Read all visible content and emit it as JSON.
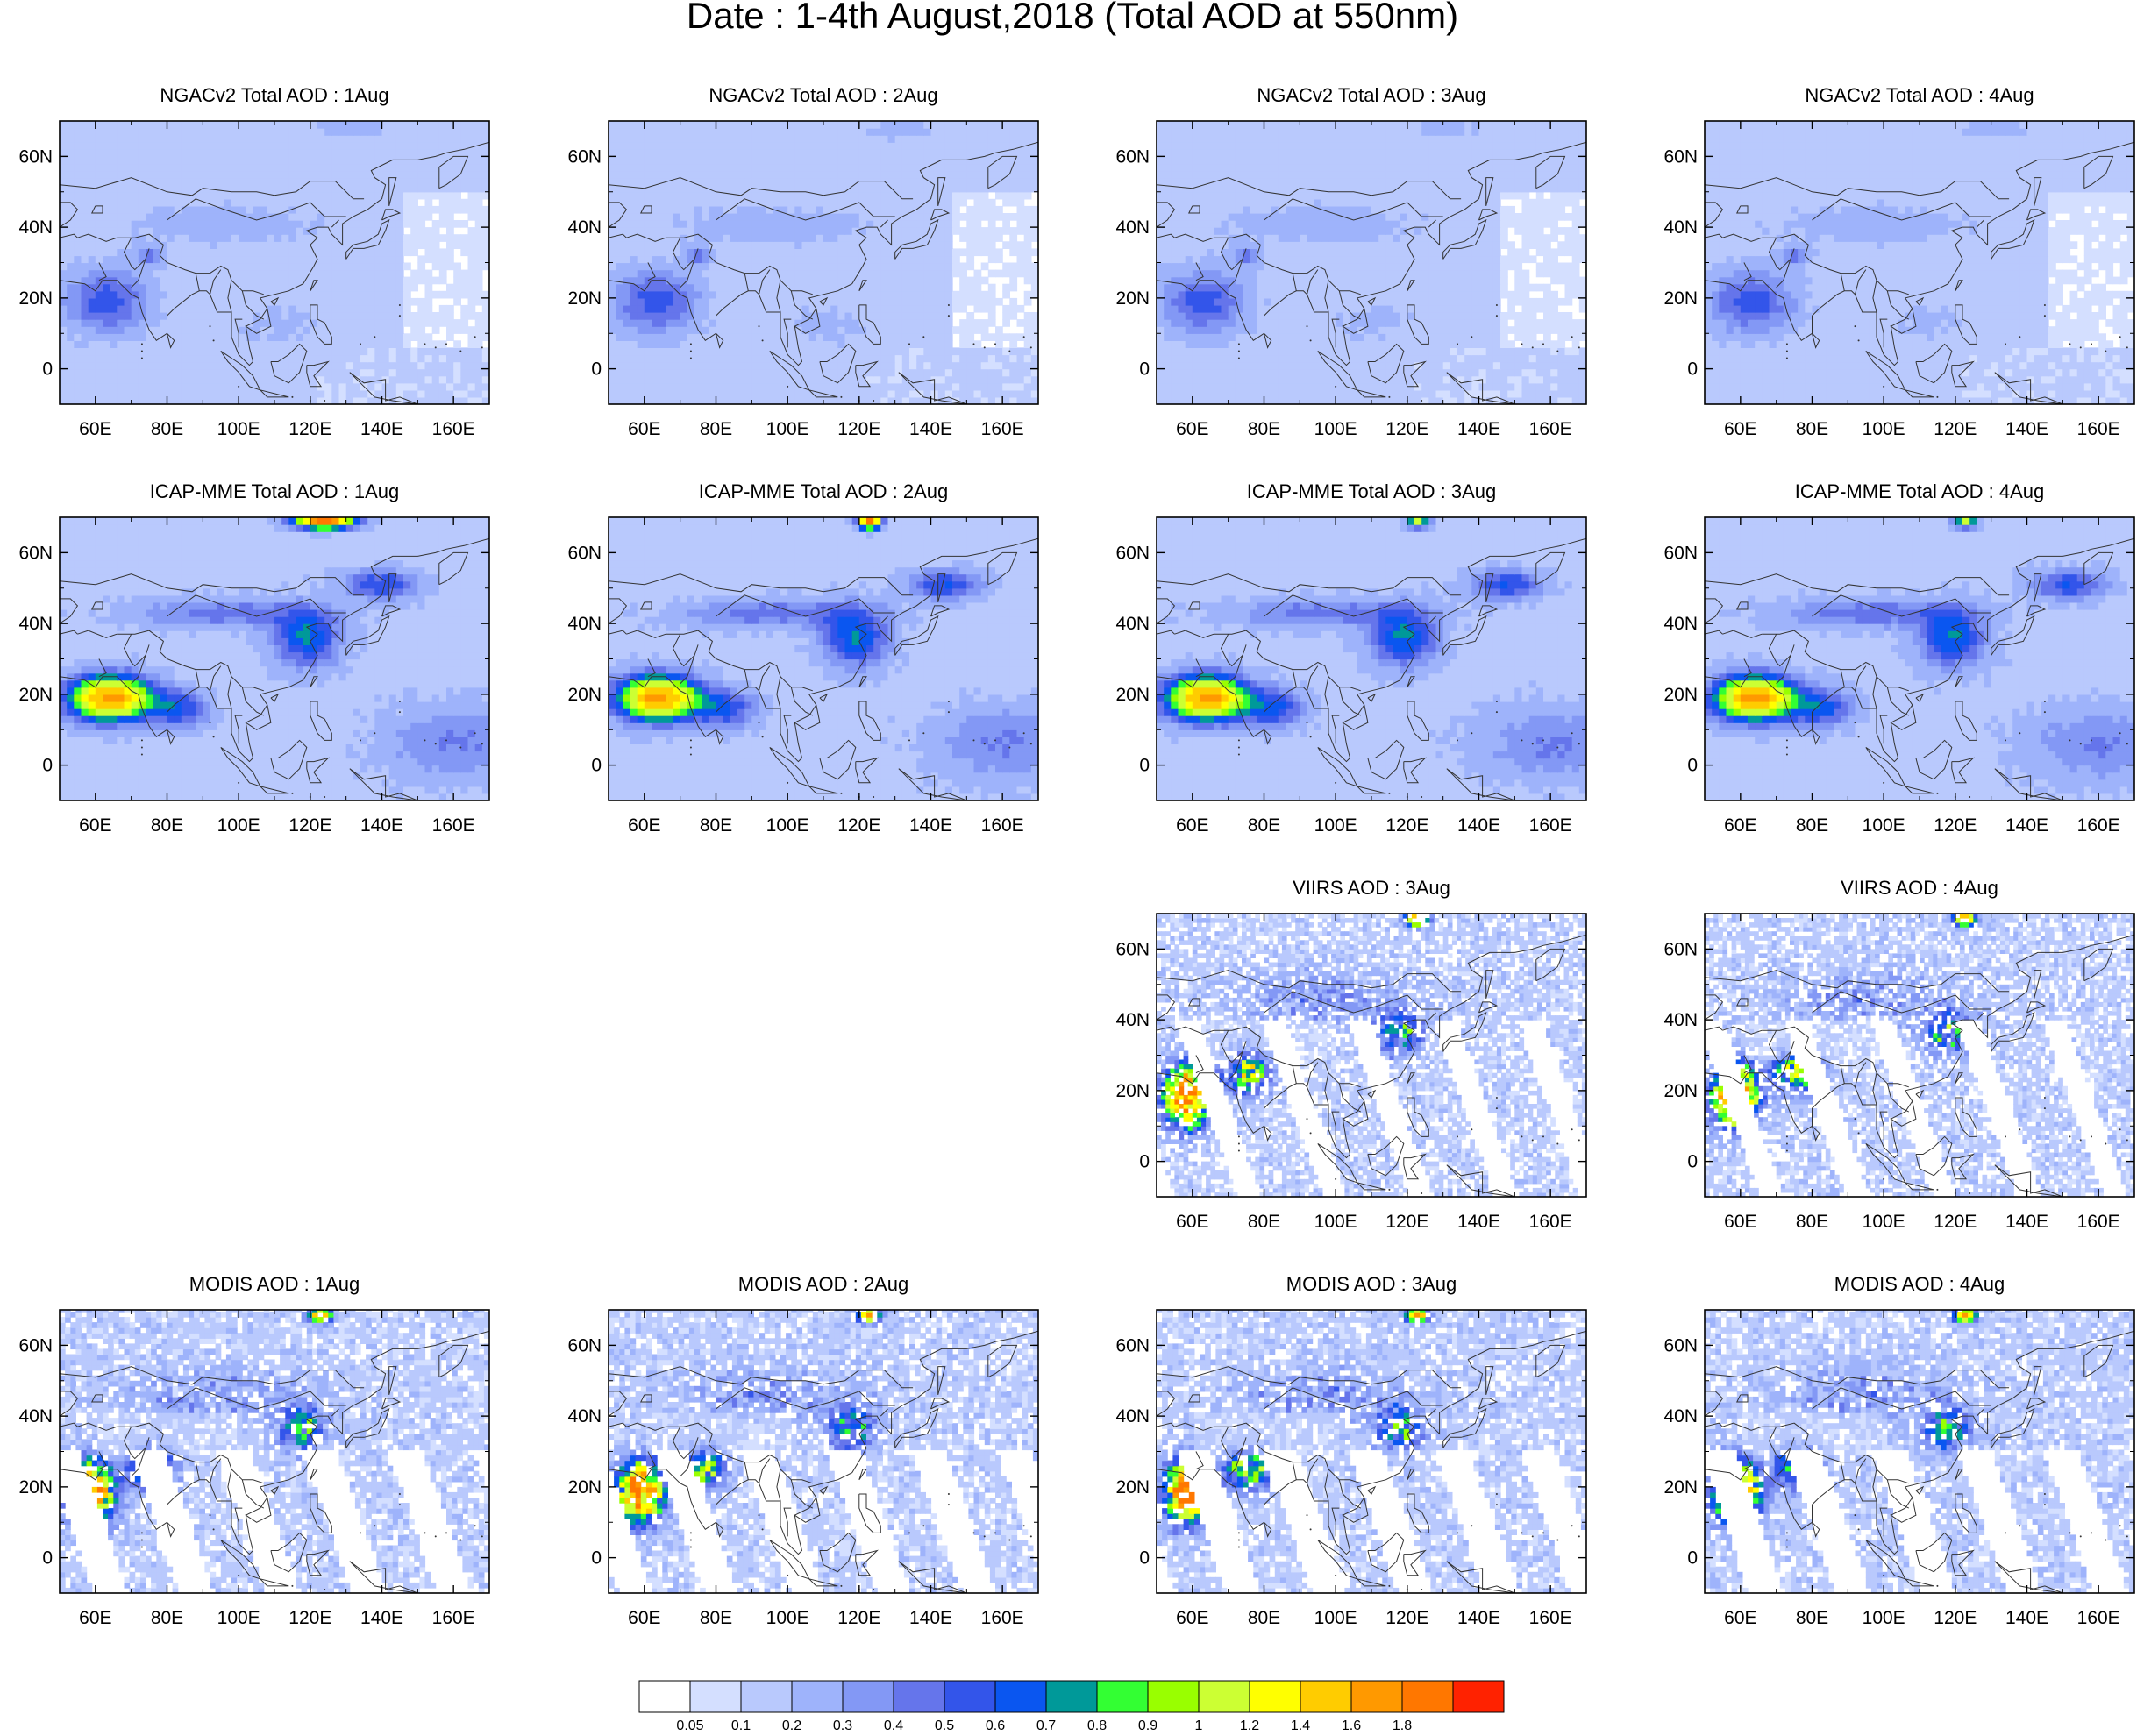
{
  "figure": {
    "title": "Date : 1-4th August,2018 (Total AOD at 550nm)"
  },
  "lon_labels": [
    "60E",
    "80E",
    "100E",
    "120E",
    "140E",
    "160E"
  ],
  "lat_labels": [
    "60N",
    "40N",
    "20N",
    "0"
  ],
  "panels": [
    {
      "title": "NGACv2 Total AOD : 1Aug",
      "row": 0,
      "col": 0
    },
    {
      "title": "NGACv2 Total AOD : 2Aug",
      "row": 0,
      "col": 1
    },
    {
      "title": "NGACv2 Total AOD : 3Aug",
      "row": 0,
      "col": 2
    },
    {
      "title": "NGACv2 Total AOD : 4Aug",
      "row": 0,
      "col": 3
    },
    {
      "title": "ICAP-MME Total AOD : 1Aug",
      "row": 1,
      "col": 0
    },
    {
      "title": "ICAP-MME Total AOD : 2Aug",
      "row": 1,
      "col": 1
    },
    {
      "title": "ICAP-MME Total AOD : 3Aug",
      "row": 1,
      "col": 2
    },
    {
      "title": "ICAP-MME Total AOD : 4Aug",
      "row": 1,
      "col": 3
    },
    {
      "title": "VIIRS AOD : 3Aug",
      "row": 2,
      "col": 2
    },
    {
      "title": "VIIRS AOD : 4Aug",
      "row": 2,
      "col": 3
    },
    {
      "title": "MODIS AOD : 1Aug",
      "row": 3,
      "col": 0
    },
    {
      "title": "MODIS AOD : 2Aug",
      "row": 3,
      "col": 1
    },
    {
      "title": "MODIS AOD : 3Aug",
      "row": 3,
      "col": 2
    },
    {
      "title": "MODIS AOD : 4Aug",
      "row": 3,
      "col": 3
    }
  ],
  "colorbar": {
    "colors": [
      "#ffffff",
      "#d4dfff",
      "#b9c9fd",
      "#9eb3fb",
      "#8398f5",
      "#6575eb",
      "#3355ea",
      "#0a56f0",
      "#009999",
      "#33ff33",
      "#99ff00",
      "#ccff33",
      "#ffff00",
      "#ffcc00",
      "#ff9900",
      "#ff7700",
      "#ff2200"
    ],
    "labels": [
      "0.05",
      "0.1",
      "0.2",
      "0.3",
      "0.4",
      "0.5",
      "0.6",
      "0.7",
      "0.8",
      "0.9",
      "1",
      "1.2",
      "1.4",
      "1.6",
      "1.8"
    ]
  }
}
